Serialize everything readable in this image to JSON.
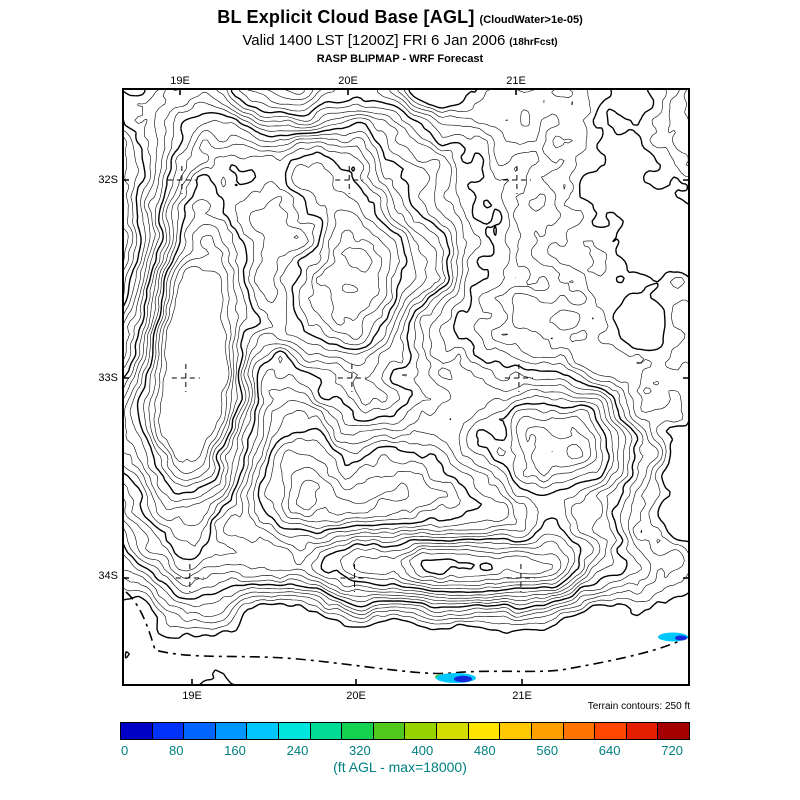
{
  "header": {
    "title": "BL Explicit Cloud Base [AGL]",
    "title_note": "(CloudWater>1e-05)",
    "valid_line": "Valid 1400 LST [1200Z] FRI 6 Jan 2006",
    "valid_note": "(18hrFcst)",
    "model_line": "RASP BLIPMAP - WRF Forecast"
  },
  "map": {
    "x_ticks": [
      "19E",
      "20E",
      "21E"
    ],
    "y_ticks": [
      "32S",
      "33S",
      "34S"
    ],
    "terrain_note": "Terrain contours: 250 ft",
    "contour_color": "#000000"
  },
  "colorbar": {
    "ticks": [
      "0",
      "80",
      "160",
      "240",
      "320",
      "400",
      "480",
      "560",
      "640",
      "720"
    ],
    "colors": [
      "#0000C8",
      "#0032FA",
      "#0064FF",
      "#0096FF",
      "#00C8FF",
      "#00E6DC",
      "#00DC96",
      "#14D250",
      "#50C81E",
      "#96D200",
      "#D2DC00",
      "#FFE600",
      "#FFC800",
      "#FFA000",
      "#FF7300",
      "#FF4600",
      "#E61E00",
      "#A50000"
    ],
    "footer": "(ft AGL - max=18000)",
    "text_color": "#008080"
  },
  "chart_data": {
    "type": "heatmap",
    "title": "BL Explicit Cloud Base [AGL] (CloudWater>1e-05)",
    "subtitle": "Valid 1400 LST [1200Z] FRI 6 Jan 2006 (18hrFcst)",
    "source": "RASP BLIPMAP - WRF Forecast",
    "x_ticks": [
      "19E",
      "20E",
      "21E"
    ],
    "y_ticks": [
      "32S",
      "33S",
      "34S"
    ],
    "colorbar_values": [
      0,
      80,
      160,
      240,
      320,
      400,
      480,
      560,
      640,
      720
    ],
    "colorbar_label": "(ft AGL - max=18000)",
    "annotation": "Terrain contours: 250 ft"
  }
}
